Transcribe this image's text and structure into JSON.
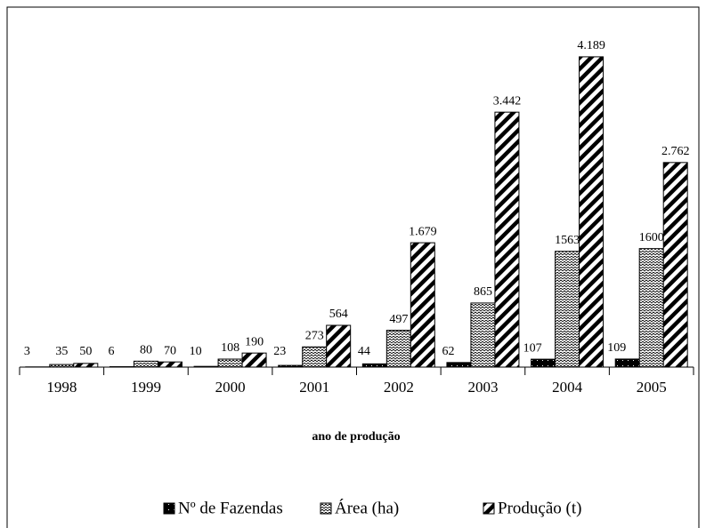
{
  "chart_data": {
    "type": "bar",
    "x_label": "ano de produção",
    "categories": [
      "1998",
      "1999",
      "2000",
      "2001",
      "2002",
      "2003",
      "2004",
      "2005"
    ],
    "series": [
      {
        "name": "Nº de Fazendas",
        "color": "#000000",
        "pattern": "solid",
        "values": [
          3,
          6,
          10,
          23,
          44,
          62,
          107,
          109
        ]
      },
      {
        "name": "Área (ha)",
        "color": "#000000",
        "pattern": "wave",
        "values": [
          35,
          80,
          108,
          273,
          497,
          865,
          1563,
          1600
        ]
      },
      {
        "name": "Produção (t)",
        "color": "#000000",
        "pattern": "diagonal",
        "values": [
          50,
          70,
          190,
          564,
          1679,
          3442,
          4189,
          2762
        ],
        "value_labels": [
          "50",
          "70",
          "190",
          "564",
          "1.679",
          "3.442",
          "4.189",
          "2.762"
        ]
      }
    ],
    "ylim": [
      0,
      4500
    ],
    "legend": "bottom"
  }
}
